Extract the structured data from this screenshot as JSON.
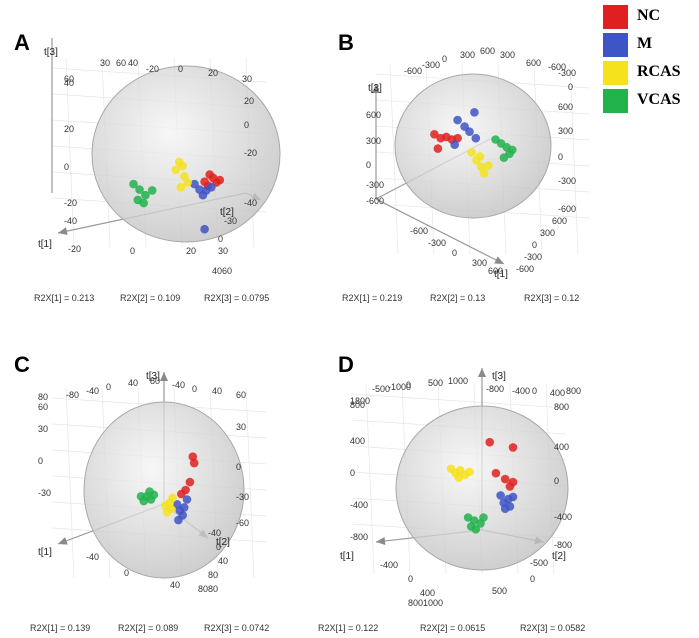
{
  "legend": {
    "items": [
      {
        "label": "NC",
        "color": "#E02020"
      },
      {
        "label": "M",
        "color": "#3E55C5"
      },
      {
        "label": "RCAS",
        "color": "#F5E21B"
      },
      {
        "label": "VCAS",
        "color": "#22B24C"
      }
    ]
  },
  "chart_data": [
    {
      "type": "scatter",
      "panel": "A",
      "axes": {
        "x": "t[1]",
        "y": "t[2]",
        "z": "t[3]"
      },
      "z_ticks_left": [
        "60",
        "40",
        "20",
        "0",
        "-20",
        "-40"
      ],
      "z_ticks_right": [
        "20",
        "0",
        "-20",
        "-40"
      ],
      "top_ticks": [
        "30",
        "60",
        "40",
        "-20",
        "0",
        "20",
        "30"
      ],
      "x_ticks": [
        "-20",
        "0",
        "20",
        "4060"
      ],
      "y_ticks": [
        "-30",
        "0",
        "30"
      ],
      "r2x": [
        "R2X[1] = 0.213",
        "R2X[2] = 0.109",
        "R2X[3] = 0.0795"
      ],
      "points": [
        {
          "g": "NC",
          "u": 0.22,
          "v": 0.35
        },
        {
          "g": "NC",
          "u": 0.28,
          "v": 0.26
        },
        {
          "g": "NC",
          "u": 0.32,
          "v": 0.3
        },
        {
          "g": "NC",
          "u": 0.36,
          "v": 0.36
        },
        {
          "g": "NC",
          "u": 0.4,
          "v": 0.33
        },
        {
          "g": "NC",
          "u": 0.26,
          "v": 0.4
        },
        {
          "g": "M",
          "u": 0.1,
          "v": 0.38
        },
        {
          "g": "M",
          "u": 0.16,
          "v": 0.45
        },
        {
          "g": "M",
          "u": 0.2,
          "v": 0.52
        },
        {
          "g": "M",
          "u": 0.24,
          "v": 0.46
        },
        {
          "g": "M",
          "u": 0.3,
          "v": 0.42
        },
        {
          "g": "M",
          "u": 0.22,
          "v": 0.95
        },
        {
          "g": "RCAS",
          "u": -0.08,
          "v": 0.1
        },
        {
          "g": "RCAS",
          "u": -0.04,
          "v": 0.15
        },
        {
          "g": "RCAS",
          "u": -0.12,
          "v": 0.2
        },
        {
          "g": "RCAS",
          "u": -0.02,
          "v": 0.28
        },
        {
          "g": "RCAS",
          "u": -0.06,
          "v": 0.42
        },
        {
          "g": "RCAS",
          "u": 0.02,
          "v": 0.36
        },
        {
          "g": "VCAS",
          "u": -0.62,
          "v": 0.38
        },
        {
          "g": "VCAS",
          "u": -0.55,
          "v": 0.45
        },
        {
          "g": "VCAS",
          "u": -0.48,
          "v": 0.52
        },
        {
          "g": "VCAS",
          "u": -0.5,
          "v": 0.62
        },
        {
          "g": "VCAS",
          "u": -0.4,
          "v": 0.46
        },
        {
          "g": "VCAS",
          "u": -0.57,
          "v": 0.58
        }
      ]
    },
    {
      "type": "scatter",
      "panel": "B",
      "axes": {
        "x": "t[1]",
        "y": "t[2]",
        "z": "t[3]"
      },
      "z_ticks_left": [
        "600",
        "300",
        "0",
        "-300",
        "-600"
      ],
      "z_ticks_right": [
        "600",
        "300",
        "0",
        "-300",
        "-600"
      ],
      "top_ticks": [
        "-600",
        "-300",
        "0",
        "300",
        "600",
        "300",
        "600",
        "-600",
        "-300",
        "0"
      ],
      "x_ticks": [
        "-600",
        "-300",
        "0",
        "300",
        "600"
      ],
      "y_ticks": [
        "600",
        "300",
        "0",
        "-300",
        "-600"
      ],
      "r2x": [
        "R2X[1] = 0.219",
        "R2X[2] = 0.13",
        "R2X[3] = 0.12"
      ],
      "points": [
        {
          "g": "NC",
          "u": -0.55,
          "v": -0.18
        },
        {
          "g": "NC",
          "u": -0.46,
          "v": -0.12
        },
        {
          "g": "NC",
          "u": -0.38,
          "v": -0.14
        },
        {
          "g": "NC",
          "u": -0.3,
          "v": -0.1
        },
        {
          "g": "NC",
          "u": -0.22,
          "v": -0.12
        },
        {
          "g": "NC",
          "u": -0.5,
          "v": 0.04
        },
        {
          "g": "M",
          "u": -0.22,
          "v": -0.4
        },
        {
          "g": "M",
          "u": -0.12,
          "v": -0.3
        },
        {
          "g": "M",
          "u": -0.05,
          "v": -0.22
        },
        {
          "g": "M",
          "u": 0.02,
          "v": -0.52
        },
        {
          "g": "M",
          "u": -0.26,
          "v": -0.02
        },
        {
          "g": "M",
          "u": 0.04,
          "v": -0.12
        },
        {
          "g": "RCAS",
          "u": -0.02,
          "v": 0.1
        },
        {
          "g": "RCAS",
          "u": 0.05,
          "v": 0.22
        },
        {
          "g": "RCAS",
          "u": 0.12,
          "v": 0.32
        },
        {
          "g": "RCAS",
          "u": 0.16,
          "v": 0.42
        },
        {
          "g": "RCAS",
          "u": 0.22,
          "v": 0.3
        },
        {
          "g": "RCAS",
          "u": 0.1,
          "v": 0.16
        },
        {
          "g": "VCAS",
          "u": 0.32,
          "v": -0.1
        },
        {
          "g": "VCAS",
          "u": 0.4,
          "v": -0.04
        },
        {
          "g": "VCAS",
          "u": 0.48,
          "v": 0.02
        },
        {
          "g": "VCAS",
          "u": 0.52,
          "v": 0.12
        },
        {
          "g": "VCAS",
          "u": 0.44,
          "v": 0.18
        },
        {
          "g": "VCAS",
          "u": 0.56,
          "v": 0.06
        }
      ]
    },
    {
      "type": "scatter",
      "panel": "C",
      "axes": {
        "x": "t[1]",
        "y": "t[2]",
        "z": "t[3]"
      },
      "z_ticks_left": [
        "80",
        "60",
        "30",
        "0",
        "-30"
      ],
      "z_ticks_right": [
        "60",
        "30",
        "0",
        "-30",
        "-60"
      ],
      "top_ticks": [
        "-80",
        "-40",
        "0",
        "40",
        "80",
        "-40",
        "0",
        "40"
      ],
      "x_ticks": [
        "-40",
        "0",
        "40",
        "8080"
      ],
      "y_ticks": [
        "-40",
        "0",
        "40",
        "80"
      ],
      "r2x": [
        "R2X[1] = 0.139",
        "R2X[2] = 0.089",
        "R2X[3] = 0.0742"
      ],
      "points": [
        {
          "g": "NC",
          "u": 0.4,
          "v": -0.42
        },
        {
          "g": "NC",
          "u": 0.42,
          "v": -0.34
        },
        {
          "g": "NC",
          "u": 0.36,
          "v": -0.1
        },
        {
          "g": "NC",
          "u": 0.3,
          "v": 0.0
        },
        {
          "g": "NC",
          "u": 0.24,
          "v": 0.05
        },
        {
          "g": "M",
          "u": 0.18,
          "v": 0.18
        },
        {
          "g": "M",
          "u": 0.22,
          "v": 0.26
        },
        {
          "g": "M",
          "u": 0.26,
          "v": 0.32
        },
        {
          "g": "M",
          "u": 0.2,
          "v": 0.38
        },
        {
          "g": "M",
          "u": 0.28,
          "v": 0.22
        },
        {
          "g": "M",
          "u": 0.32,
          "v": 0.12
        },
        {
          "g": "RCAS",
          "u": 0.02,
          "v": 0.2
        },
        {
          "g": "RCAS",
          "u": 0.08,
          "v": 0.16
        },
        {
          "g": "RCAS",
          "u": 0.12,
          "v": 0.1
        },
        {
          "g": "RCAS",
          "u": 0.04,
          "v": 0.28
        },
        {
          "g": "RCAS",
          "u": 0.1,
          "v": 0.24
        },
        {
          "g": "VCAS",
          "u": -0.32,
          "v": 0.08
        },
        {
          "g": "VCAS",
          "u": -0.24,
          "v": 0.08
        },
        {
          "g": "VCAS",
          "u": -0.18,
          "v": 0.12
        },
        {
          "g": "VCAS",
          "u": -0.28,
          "v": 0.14
        },
        {
          "g": "VCAS",
          "u": -0.2,
          "v": 0.02
        },
        {
          "g": "VCAS",
          "u": -0.14,
          "v": 0.06
        }
      ]
    },
    {
      "type": "scatter",
      "panel": "D",
      "axes": {
        "x": "t[1]",
        "y": "t[2]",
        "z": "t[3]"
      },
      "z_ticks_left": [
        "1800",
        "800",
        "400",
        "0",
        "-400",
        "-800"
      ],
      "z_ticks_right": [
        "800",
        "400",
        "0",
        "-400",
        "-800"
      ],
      "top_ticks": [
        "-500",
        "-1000",
        "0",
        "500",
        "1000",
        "-800",
        "-400",
        "0",
        "400",
        "800"
      ],
      "x_ticks": [
        "-400",
        "0",
        "400",
        "8001000"
      ],
      "y_ticks": [
        "-500",
        "0",
        "500"
      ],
      "r2x": [
        "R2X[1] = 0.122",
        "R2X[2] = 0.0615",
        "R2X[3] = 0.0582"
      ],
      "points": [
        {
          "g": "NC",
          "u": 0.1,
          "v": -0.62
        },
        {
          "g": "NC",
          "u": 0.4,
          "v": -0.55
        },
        {
          "g": "NC",
          "u": 0.18,
          "v": -0.2
        },
        {
          "g": "NC",
          "u": 0.3,
          "v": -0.12
        },
        {
          "g": "NC",
          "u": 0.4,
          "v": -0.08
        },
        {
          "g": "NC",
          "u": 0.36,
          "v": -0.02
        },
        {
          "g": "M",
          "u": 0.24,
          "v": 0.1
        },
        {
          "g": "M",
          "u": 0.28,
          "v": 0.2
        },
        {
          "g": "M",
          "u": 0.34,
          "v": 0.15
        },
        {
          "g": "M",
          "u": 0.4,
          "v": 0.12
        },
        {
          "g": "M",
          "u": 0.3,
          "v": 0.28
        },
        {
          "g": "M",
          "u": 0.36,
          "v": 0.25
        },
        {
          "g": "RCAS",
          "u": -0.4,
          "v": -0.26
        },
        {
          "g": "RCAS",
          "u": -0.34,
          "v": -0.2
        },
        {
          "g": "RCAS",
          "u": -0.28,
          "v": -0.24
        },
        {
          "g": "RCAS",
          "u": -0.22,
          "v": -0.18
        },
        {
          "g": "RCAS",
          "u": -0.16,
          "v": -0.22
        },
        {
          "g": "RCAS",
          "u": -0.3,
          "v": -0.14
        },
        {
          "g": "VCAS",
          "u": -0.18,
          "v": 0.4
        },
        {
          "g": "VCAS",
          "u": -0.1,
          "v": 0.44
        },
        {
          "g": "VCAS",
          "u": -0.02,
          "v": 0.48
        },
        {
          "g": "VCAS",
          "u": -0.08,
          "v": 0.56
        },
        {
          "g": "VCAS",
          "u": 0.02,
          "v": 0.4
        },
        {
          "g": "VCAS",
          "u": -0.14,
          "v": 0.52
        }
      ]
    }
  ]
}
